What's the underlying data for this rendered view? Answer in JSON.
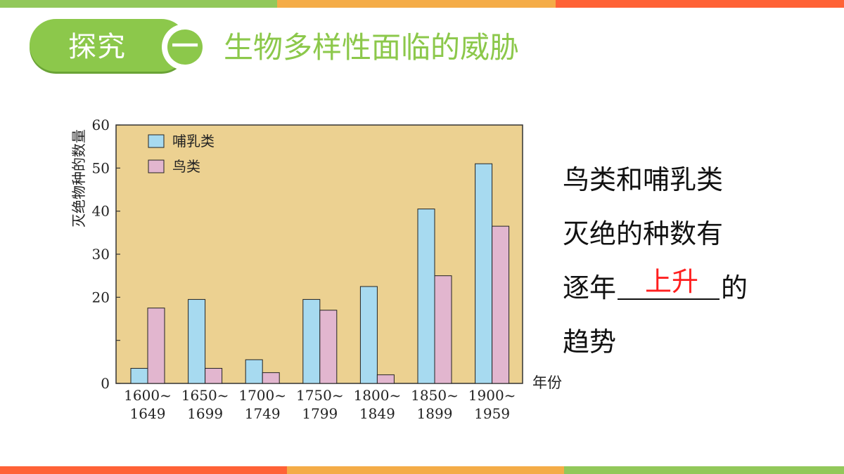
{
  "header": {
    "badge_text": "探究",
    "section_number": "一",
    "title": "生物多样性面临的威胁"
  },
  "colors": {
    "accent_green": "#8cc84b",
    "stripe_green": "#92c85a",
    "stripe_orange": "#f4ac47",
    "stripe_red": "#ff6236",
    "answer_red": "#ff1f1f",
    "plot_bg": "#ecd191",
    "mammal_bar": "#a7daf0",
    "bird_bar": "#e2b6cf"
  },
  "chart_data": {
    "type": "bar",
    "categories": [
      "1600~ 1649",
      "1650~ 1699",
      "1700~ 1749",
      "1750~ 1799",
      "1800~ 1849",
      "1850~ 1899",
      "1900~ 1959"
    ],
    "category_lines": [
      [
        "1600~",
        "1649"
      ],
      [
        "1650~",
        "1699"
      ],
      [
        "1700~",
        "1749"
      ],
      [
        "1750~",
        "1799"
      ],
      [
        "1800~",
        "1849"
      ],
      [
        "1850~",
        "1899"
      ],
      [
        "1900~",
        "1959"
      ]
    ],
    "series": [
      {
        "name": "哺乳类",
        "values": [
          3.5,
          19.5,
          5.5,
          19.5,
          22.5,
          40.5,
          51
        ]
      },
      {
        "name": "鸟类",
        "values": [
          17.5,
          3.5,
          2.5,
          17,
          2,
          25,
          36.5
        ]
      }
    ],
    "title": "",
    "xlabel": "年份",
    "ylabel": "灭绝物种的数量",
    "ylim": [
      0,
      60
    ],
    "y_ticks": [
      0,
      10,
      20,
      30,
      40,
      50,
      60
    ],
    "legend_position": "top-left",
    "grid": false
  },
  "side_text": {
    "line1": "鸟类和哺乳类",
    "line2": "灭绝的种数有",
    "line3_before": "逐年",
    "line3_after": "的",
    "line4": "趋势",
    "answer": "上升"
  }
}
